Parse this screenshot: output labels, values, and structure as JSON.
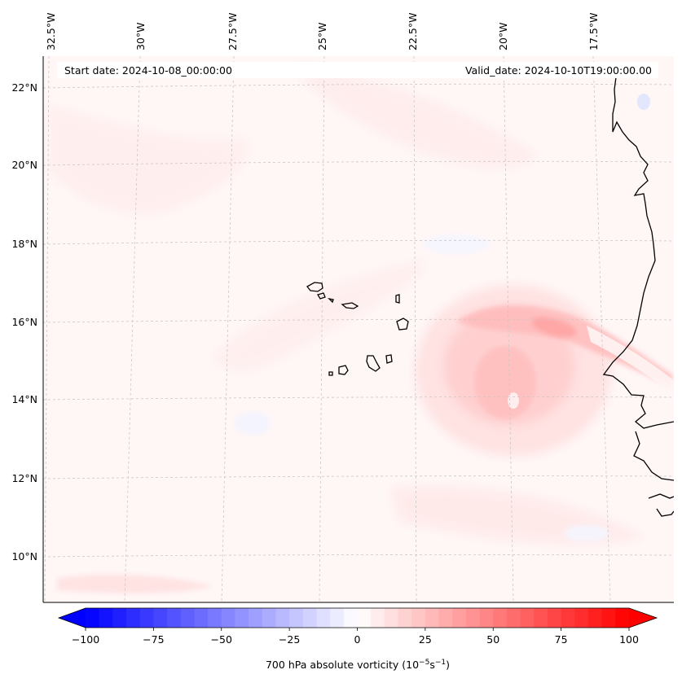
{
  "header": {
    "start_date": "Start date: 2024-10-08_00:00:00",
    "valid_date": "Valid_date: 2024-10-10T19:00:00.00"
  },
  "longitude_labels": [
    "32.5°W",
    "30°W",
    "27.5°W",
    "25°W",
    "22.5°W",
    "20°W",
    "17.5°W"
  ],
  "latitude_labels": [
    "22°N",
    "20°N",
    "18°N",
    "16°N",
    "14°N",
    "12°N",
    "10°N"
  ],
  "colorbar": {
    "label_prefix": "700 hPa absolute vorticity (10",
    "label_exp1": "−5",
    "label_mid": "s",
    "label_exp2": "−1",
    "label_suffix": ")",
    "min": -100,
    "max": 100,
    "ticks": [
      "−100",
      "−75",
      "−50",
      "−25",
      "0",
      "25",
      "50",
      "75",
      "100"
    ],
    "low_color": "#0000ff",
    "high_color": "#ff0000"
  },
  "colors": {
    "background_field": "#fff6f6",
    "coastline": "#000000",
    "gridline": "#c8c8c8"
  }
}
